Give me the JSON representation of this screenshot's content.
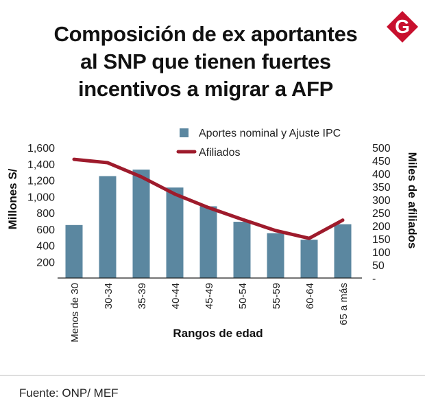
{
  "title_lines": [
    "Composición de ex aportantes",
    "al SNP que tienen fuertes",
    "incentivos a migrar a AFP"
  ],
  "logo": {
    "letter": "G",
    "color": "#c8102e"
  },
  "source": "Fuente: ONP/ MEF",
  "colors": {
    "bar": "#5b87a0",
    "line": "#9e1b2c",
    "axis": "#222222"
  },
  "chart_data": {
    "type": "bar+line",
    "categories": [
      "Menos de 30",
      "30-34",
      "35-39",
      "40-44",
      "45-49",
      "50-54",
      "55-59",
      "60-64",
      "65 a más"
    ],
    "series": [
      {
        "name": "Aportes nominal y Ajuste IPC",
        "type": "bar",
        "axis": "left",
        "values": [
          650,
          1250,
          1330,
          1110,
          880,
          690,
          550,
          470,
          660
        ]
      },
      {
        "name": "Afiliados",
        "type": "line",
        "axis": "right",
        "values": [
          455,
          442,
          388,
          322,
          270,
          225,
          182,
          152,
          222
        ]
      }
    ],
    "xlabel": "Rangos de edad",
    "ylabel_left": "Millones S/",
    "ylabel_right": "Miles de afiliados",
    "left_axis": {
      "range": [
        0,
        1600
      ],
      "ticks": [
        200,
        400,
        600,
        800,
        1000,
        1200,
        1400,
        1600
      ],
      "tick_labels": [
        "200",
        "400",
        "600",
        "800",
        "1,000",
        "1,200",
        "1,400",
        "1,600"
      ]
    },
    "right_axis": {
      "range": [
        0,
        500
      ],
      "ticks": [
        0,
        50,
        100,
        150,
        200,
        250,
        300,
        350,
        400,
        450,
        500
      ],
      "tick_labels": [
        "-",
        "50",
        "100",
        "150",
        "200",
        "250",
        "300",
        "350",
        "400",
        "450",
        "500"
      ]
    },
    "legend_position": "top-right"
  }
}
